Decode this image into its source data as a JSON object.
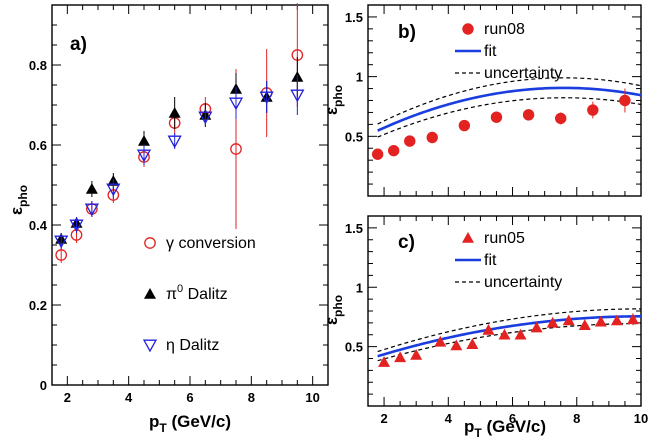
{
  "chart_data": [
    {
      "type": "scatter",
      "panel_label": "a)",
      "xlabel": "p",
      "xlabel_sub": "T",
      "xlabel_suffix": " (GeV/c)",
      "ylabel": "ε",
      "ylabel_sub": "pho",
      "xlim": [
        1.5,
        10.5
      ],
      "ylim": [
        0,
        0.95
      ],
      "xticks": [
        {
          "v": 2,
          "label": "2"
        },
        {
          "v": 4,
          "label": "4"
        },
        {
          "v": 6,
          "label": "6"
        },
        {
          "v": 8,
          "label": "8"
        },
        {
          "v": 10,
          "label": "10"
        }
      ],
      "yticks": [
        {
          "v": 0,
          "label": "0"
        },
        {
          "v": 0.2,
          "label": "0.2"
        },
        {
          "v": 0.4,
          "label": "0.4"
        },
        {
          "v": 0.6,
          "label": "0.6"
        },
        {
          "v": 0.8,
          "label": "0.8"
        }
      ],
      "legend_position": "bottom-right",
      "series": [
        {
          "name": "γ conversion",
          "marker": "open-circle",
          "color": "#e32222",
          "points": [
            {
              "x": 1.8,
              "y": 0.325,
              "err": 0.02
            },
            {
              "x": 2.3,
              "y": 0.375,
              "err": 0.02
            },
            {
              "x": 2.8,
              "y": 0.44,
              "err": 0.02
            },
            {
              "x": 3.5,
              "y": 0.475,
              "err": 0.02
            },
            {
              "x": 4.5,
              "y": 0.57,
              "err": 0.025
            },
            {
              "x": 5.5,
              "y": 0.655,
              "err": 0.03
            },
            {
              "x": 6.5,
              "y": 0.69,
              "err": 0.03
            },
            {
              "x": 7.5,
              "y": 0.59,
              "err": 0.2
            },
            {
              "x": 8.5,
              "y": 0.73,
              "err": 0.11
            },
            {
              "x": 9.5,
              "y": 0.825,
              "err": 0.13
            }
          ]
        },
        {
          "name": "π^0 Dalitz",
          "name_main": "π",
          "name_sup": "0",
          "name_suffix": " Dalitz",
          "marker": "filled-triangle",
          "color": "#000000",
          "points": [
            {
              "x": 1.8,
              "y": 0.365,
              "err": 0.015
            },
            {
              "x": 2.3,
              "y": 0.405,
              "err": 0.015
            },
            {
              "x": 2.8,
              "y": 0.49,
              "err": 0.02
            },
            {
              "x": 3.5,
              "y": 0.51,
              "err": 0.02
            },
            {
              "x": 4.5,
              "y": 0.61,
              "err": 0.025
            },
            {
              "x": 5.5,
              "y": 0.68,
              "err": 0.04
            },
            {
              "x": 6.5,
              "y": 0.675,
              "err": 0.03
            },
            {
              "x": 7.5,
              "y": 0.74,
              "err": 0.04
            },
            {
              "x": 8.5,
              "y": 0.72,
              "err": 0.04
            },
            {
              "x": 9.5,
              "y": 0.77,
              "err": 0.05
            }
          ]
        },
        {
          "name": "η Dalitz",
          "marker": "open-inverted-triangle",
          "color": "#2222dd",
          "points": [
            {
              "x": 1.8,
              "y": 0.36,
              "err": 0.02
            },
            {
              "x": 2.3,
              "y": 0.4,
              "err": 0.02
            },
            {
              "x": 2.8,
              "y": 0.44,
              "err": 0.02
            },
            {
              "x": 3.5,
              "y": 0.49,
              "err": 0.025
            },
            {
              "x": 4.5,
              "y": 0.575,
              "err": 0.025
            },
            {
              "x": 5.5,
              "y": 0.61,
              "err": 0.02
            },
            {
              "x": 6.5,
              "y": 0.67,
              "err": 0.02
            },
            {
              "x": 7.5,
              "y": 0.705,
              "err": 0.04
            },
            {
              "x": 8.5,
              "y": 0.72,
              "err": 0.04
            },
            {
              "x": 9.5,
              "y": 0.725,
              "err": 0.05
            }
          ]
        }
      ]
    },
    {
      "type": "scatter",
      "panel_label": "b)",
      "ylabel": "ε",
      "ylabel_sub": "pho",
      "xlim": [
        1.5,
        10.0
      ],
      "ylim": [
        0,
        1.6
      ],
      "xticks": [
        {
          "v": 2,
          "label": ""
        },
        {
          "v": 4,
          "label": ""
        },
        {
          "v": 6,
          "label": ""
        },
        {
          "v": 8,
          "label": ""
        },
        {
          "v": 10,
          "label": ""
        }
      ],
      "yticks": [
        {
          "v": 0.5,
          "label": "0.5"
        },
        {
          "v": 1.0,
          "label": "1"
        },
        {
          "v": 1.5,
          "label": "1.5"
        }
      ],
      "legend_position": "top-right",
      "legend": [
        {
          "label": "run08",
          "kind": "filled-circle",
          "color": "#e32222"
        },
        {
          "label": "fit",
          "kind": "solid-line",
          "color": "#1a3de0"
        },
        {
          "label": "uncertainty",
          "kind": "dashed-line",
          "color": "#000000"
        }
      ],
      "series": [
        {
          "name": "run08",
          "marker": "filled-circle",
          "color": "#e32222",
          "points": [
            {
              "x": 1.8,
              "y": 0.35,
              "err": 0.02
            },
            {
              "x": 2.3,
              "y": 0.38,
              "err": 0.02
            },
            {
              "x": 2.8,
              "y": 0.46,
              "err": 0.02
            },
            {
              "x": 3.5,
              "y": 0.49,
              "err": 0.02
            },
            {
              "x": 4.5,
              "y": 0.59,
              "err": 0.025
            },
            {
              "x": 5.5,
              "y": 0.66,
              "err": 0.03
            },
            {
              "x": 6.5,
              "y": 0.68,
              "err": 0.04
            },
            {
              "x": 7.5,
              "y": 0.65,
              "err": 0.05
            },
            {
              "x": 8.5,
              "y": 0.72,
              "err": 0.07
            },
            {
              "x": 9.5,
              "y": 0.8,
              "err": 0.1
            }
          ]
        }
      ],
      "fit": {
        "a": 0.29,
        "b": 0.162,
        "c": -0.01066,
        "lo_offset": -0.05,
        "hi_offset": 0.06,
        "lo_scale": 0.92,
        "hi_scale": 1.08
      }
    },
    {
      "type": "scatter",
      "panel_label": "c)",
      "xlabel": "p",
      "xlabel_sub": "T",
      "xlabel_suffix": " (GeV/c)",
      "ylabel": "ε",
      "ylabel_sub": "pho",
      "xlim": [
        1.5,
        10.0
      ],
      "ylim": [
        0,
        1.6
      ],
      "xticks": [
        {
          "v": 2,
          "label": "2"
        },
        {
          "v": 4,
          "label": "4"
        },
        {
          "v": 6,
          "label": "6"
        },
        {
          "v": 8,
          "label": "8"
        },
        {
          "v": 10,
          "label": "10"
        }
      ],
      "yticks": [
        {
          "v": 0.5,
          "label": "0.5"
        },
        {
          "v": 1.0,
          "label": "1"
        },
        {
          "v": 1.5,
          "label": "1.5"
        }
      ],
      "legend_position": "top-right",
      "legend": [
        {
          "label": "run05",
          "kind": "filled-triangle",
          "color": "#e32222"
        },
        {
          "label": "fit",
          "kind": "solid-line",
          "color": "#1a3de0"
        },
        {
          "label": "uncertainty",
          "kind": "dashed-line",
          "color": "#000000"
        }
      ],
      "series": [
        {
          "name": "run05",
          "marker": "filled-triangle",
          "color": "#e32222",
          "points": [
            {
              "x": 2.0,
              "y": 0.37,
              "err": 0.02
            },
            {
              "x": 2.5,
              "y": 0.41,
              "err": 0.02
            },
            {
              "x": 3.0,
              "y": 0.43,
              "err": 0.02
            },
            {
              "x": 3.75,
              "y": 0.54,
              "err": 0.02
            },
            {
              "x": 4.25,
              "y": 0.51,
              "err": 0.02
            },
            {
              "x": 4.75,
              "y": 0.52,
              "err": 0.02
            },
            {
              "x": 5.25,
              "y": 0.64,
              "err": 0.03
            },
            {
              "x": 5.75,
              "y": 0.6,
              "err": 0.03
            },
            {
              "x": 6.25,
              "y": 0.6,
              "err": 0.03
            },
            {
              "x": 6.75,
              "y": 0.66,
              "err": 0.03
            },
            {
              "x": 7.25,
              "y": 0.7,
              "err": 0.03
            },
            {
              "x": 7.75,
              "y": 0.72,
              "err": 0.03
            },
            {
              "x": 8.25,
              "y": 0.68,
              "err": 0.04
            },
            {
              "x": 8.75,
              "y": 0.71,
              "err": 0.04
            },
            {
              "x": 9.25,
              "y": 0.72,
              "err": 0.04
            },
            {
              "x": 9.75,
              "y": 0.73,
              "err": 0.05
            }
          ]
        }
      ],
      "fit": {
        "a": 0.255,
        "b": 0.1,
        "c": -0.005,
        "lo_offset": -0.04,
        "hi_offset": 0.05,
        "lo_scale": 0.93,
        "hi_scale": 1.07
      }
    }
  ]
}
